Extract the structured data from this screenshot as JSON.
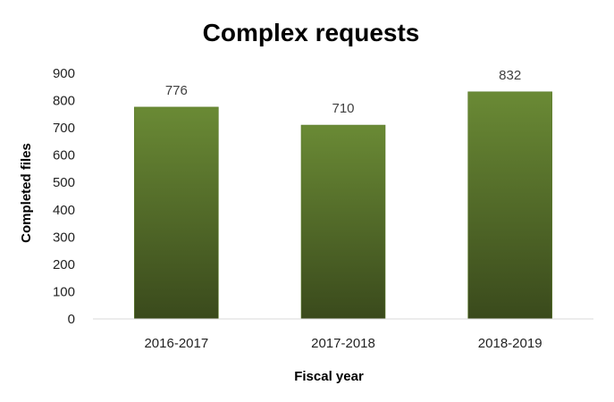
{
  "chart_data": {
    "type": "bar",
    "title": "Complex requests",
    "xlabel": "Fiscal year",
    "ylabel": "Completed files",
    "categories": [
      "2016-2017",
      "2017-2018",
      "2018-2019"
    ],
    "values": [
      776,
      710,
      832
    ],
    "data_labels": [
      "776",
      "710",
      "832"
    ],
    "ylim": [
      0,
      900
    ],
    "yticks": [
      0,
      100,
      200,
      300,
      400,
      500,
      600,
      700,
      800,
      900
    ],
    "grid": false,
    "legend": "none",
    "bar_color_top": "#6a8a35",
    "bar_color_bottom": "#3a4a1c"
  }
}
